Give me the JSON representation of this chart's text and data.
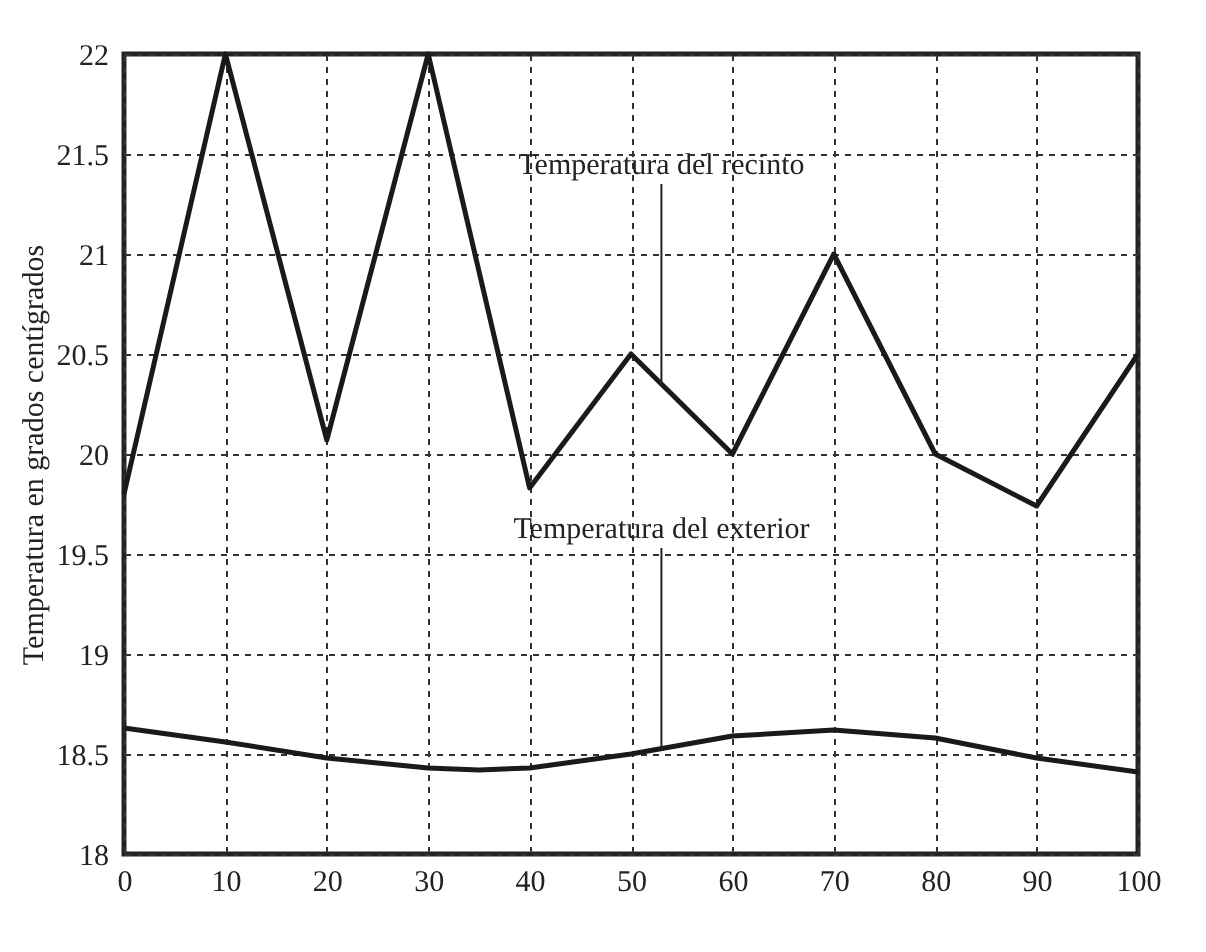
{
  "chart_data": {
    "type": "line",
    "ylabel": "Temperatura en grados centígrados",
    "x": [
      0,
      10,
      20,
      30,
      40,
      50,
      60,
      70,
      80,
      90,
      100
    ],
    "series": [
      {
        "color": "#1a1a1a",
        "values": [
          19.8,
          22,
          20.07,
          22,
          19.83,
          20.5,
          20.0,
          21.0,
          20.0,
          19.74,
          20.5
        ]
      },
      {
        "color": "#1a1a1a",
        "x": [
          0,
          10,
          20,
          30,
          35,
          40,
          50,
          60,
          70,
          80,
          90,
          100
        ],
        "values": [
          18.63,
          18.56,
          18.48,
          18.43,
          18.42,
          18.43,
          18.5,
          18.59,
          18.62,
          18.58,
          18.48,
          18.41
        ]
      }
    ],
    "annotations": [
      {
        "text": "Temperatura del recinto",
        "x": 53,
        "y": 20.35
      },
      {
        "text": "Temperatura del exterior",
        "x": 53,
        "y": 18.53
      }
    ],
    "xlim": [
      0,
      100
    ],
    "xticks": [
      0,
      10,
      20,
      30,
      40,
      50,
      60,
      70,
      80,
      90,
      100
    ],
    "ylim": [
      18,
      22
    ],
    "yticks": [
      18,
      18.5,
      19,
      19.5,
      20,
      20.5,
      21,
      21.5,
      22
    ],
    "grid": true,
    "line_style": "solid",
    "marker": "none"
  }
}
